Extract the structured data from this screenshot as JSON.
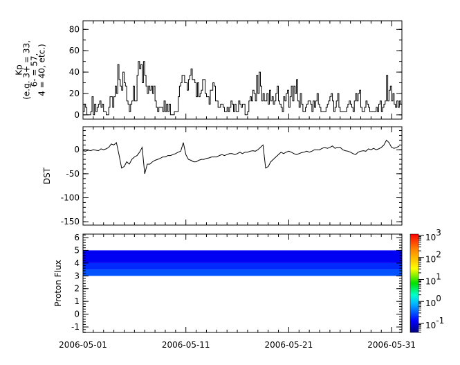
{
  "chart_data": [
    {
      "type": "line",
      "step": true,
      "ylabel_lines": [
        "Kp",
        "(e.g. 3+ = 33,",
        "6- = 57,",
        "4 = 40, etc.)"
      ],
      "ylim": [
        -4,
        88
      ],
      "yticks": [
        0,
        20,
        40,
        60,
        80
      ],
      "xlim": [
        "2006-05-01",
        "2006-06-01"
      ],
      "sampling_hours": 3,
      "start": "2006-05-01",
      "values": [
        3,
        10,
        7,
        0,
        0,
        0,
        3,
        17,
        0,
        10,
        3,
        7,
        10,
        13,
        7,
        10,
        3,
        3,
        0,
        0,
        7,
        17,
        17,
        7,
        17,
        27,
        20,
        47,
        33,
        27,
        23,
        40,
        30,
        27,
        13,
        10,
        3,
        10,
        13,
        27,
        13,
        13,
        37,
        50,
        43,
        47,
        30,
        50,
        37,
        27,
        20,
        27,
        23,
        27,
        20,
        27,
        13,
        7,
        3,
        7,
        7,
        7,
        3,
        13,
        3,
        10,
        3,
        10,
        0,
        0,
        0,
        3,
        3,
        3,
        17,
        27,
        30,
        37,
        37,
        30,
        30,
        23,
        33,
        37,
        43,
        33,
        33,
        30,
        17,
        30,
        17,
        20,
        23,
        33,
        33,
        20,
        17,
        17,
        10,
        23,
        23,
        30,
        27,
        13,
        13,
        7,
        7,
        10,
        10,
        7,
        3,
        3,
        7,
        3,
        7,
        13,
        10,
        3,
        10,
        3,
        3,
        13,
        10,
        7,
        10,
        10,
        0,
        0,
        3,
        13,
        17,
        13,
        23,
        20,
        13,
        37,
        20,
        40,
        27,
        13,
        20,
        13,
        13,
        20,
        10,
        23,
        13,
        17,
        10,
        13,
        20,
        27,
        13,
        10,
        7,
        3,
        17,
        13,
        20,
        23,
        7,
        17,
        27,
        13,
        27,
        20,
        33,
        13,
        7,
        20,
        10,
        3,
        3,
        7,
        10,
        13,
        13,
        10,
        3,
        13,
        7,
        13,
        20,
        10,
        7,
        3,
        3,
        3,
        3,
        7,
        10,
        13,
        17,
        20,
        13,
        3,
        7,
        13,
        20,
        7,
        3,
        3,
        3,
        3,
        3,
        7,
        10,
        13,
        10,
        7,
        3,
        13,
        20,
        13,
        20,
        23,
        7,
        3,
        3,
        7,
        13,
        10,
        7,
        3,
        3,
        3,
        3,
        3,
        7,
        3,
        10,
        13,
        3,
        7,
        10,
        13,
        37,
        13,
        23,
        27,
        13,
        20,
        10,
        7,
        13,
        7,
        13,
        10
      ]
    },
    {
      "type": "line",
      "ylabel": "DST",
      "ylim": [
        -157,
        48
      ],
      "yticks": [
        0,
        -50,
        -100,
        -150
      ],
      "xlim": [
        "2006-05-01",
        "2006-06-01"
      ],
      "sampling_hours": 6,
      "start": "2006-05-01",
      "values": [
        -2,
        -3,
        -1,
        -2,
        0,
        -1,
        -2,
        2,
        0,
        2,
        5,
        12,
        10,
        15,
        -10,
        -38,
        -35,
        -25,
        -30,
        -20,
        -15,
        -12,
        -5,
        5,
        -50,
        -30,
        -30,
        -25,
        -22,
        -20,
        -18,
        -15,
        -15,
        -12,
        -12,
        -10,
        -8,
        -5,
        -3,
        15,
        -10,
        -20,
        -22,
        -25,
        -25,
        -22,
        -20,
        -20,
        -18,
        -17,
        -15,
        -15,
        -15,
        -12,
        -10,
        -12,
        -10,
        -8,
        -8,
        -10,
        -8,
        -5,
        -8,
        -5,
        -5,
        -3,
        -2,
        -3,
        0,
        5,
        10,
        -38,
        -35,
        -25,
        -20,
        -15,
        -10,
        -5,
        -8,
        -5,
        -3,
        -5,
        -8,
        -10,
        -8,
        -6,
        -5,
        -3,
        -5,
        -3,
        0,
        0,
        0,
        3,
        5,
        3,
        5,
        8,
        3,
        5,
        5,
        0,
        -2,
        -3,
        -5,
        -8,
        -10,
        -5,
        -3,
        -2,
        -3,
        2,
        0,
        3,
        0,
        2,
        5,
        10,
        20,
        15,
        5,
        3,
        5,
        8
      ]
    },
    {
      "type": "heatmap",
      "ylabel": "Proton Flux",
      "ylim": [
        -1.43,
        6.27
      ],
      "yticks": [
        -1,
        0,
        1,
        2,
        3,
        4,
        5,
        6
      ],
      "xlim": [
        "2006-05-01",
        "2006-06-01"
      ],
      "bins": [
        {
          "y": [
            3.0,
            3.5
          ],
          "value": 0.3
        },
        {
          "y": [
            3.5,
            4.0
          ],
          "value": 0.2
        },
        {
          "y": [
            4.0,
            5.0
          ],
          "value": 0.12
        }
      ],
      "colorbar": {
        "scale": "log",
        "colormap": "jet",
        "range": [
          0.039,
          1150
        ],
        "tick_exponents": [
          3,
          2,
          1,
          0,
          -1
        ]
      }
    }
  ],
  "xaxis": {
    "tick_labels": [
      "2006-05-01",
      "2006-05-11",
      "2006-05-21",
      "2006-05-31"
    ],
    "tick_days": [
      0,
      10,
      20,
      30
    ]
  }
}
